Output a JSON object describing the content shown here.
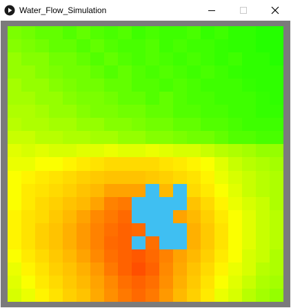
{
  "window": {
    "title": "Water_Flow_Simulation",
    "app_icon": "play-circle-icon",
    "controls": [
      "minimize-icon",
      "maximize-icon",
      "close-icon"
    ]
  },
  "colors": {
    "frame_border": "#7b7b7b",
    "water": "#3fbff2",
    "heat_low": "#10ff00",
    "heat_high": "#ff4a00"
  },
  "simulation": {
    "rows": 21,
    "cols": 20,
    "water_cells": [
      [
        12,
        10
      ],
      [
        12,
        12
      ],
      [
        13,
        9
      ],
      [
        13,
        10
      ],
      [
        13,
        11
      ],
      [
        13,
        12
      ],
      [
        14,
        9
      ],
      [
        14,
        10
      ],
      [
        14,
        11
      ],
      [
        15,
        10
      ],
      [
        15,
        11
      ],
      [
        15,
        12
      ],
      [
        16,
        9
      ],
      [
        16,
        11
      ],
      [
        16,
        12
      ]
    ],
    "elevation": [
      [
        0.2,
        0.18,
        0.15,
        0.15,
        0.12,
        0.15,
        0.12,
        0.1,
        0.12,
        0.08,
        0.1,
        0.08,
        0.08,
        0.1,
        0.06,
        0.08,
        0.05,
        0.05,
        0.03,
        0.03
      ],
      [
        0.22,
        0.2,
        0.18,
        0.15,
        0.15,
        0.12,
        0.15,
        0.12,
        0.1,
        0.1,
        0.12,
        0.08,
        0.1,
        0.08,
        0.08,
        0.06,
        0.05,
        0.05,
        0.03,
        0.03
      ],
      [
        0.25,
        0.22,
        0.22,
        0.18,
        0.18,
        0.15,
        0.12,
        0.15,
        0.12,
        0.1,
        0.12,
        0.1,
        0.08,
        0.1,
        0.08,
        0.06,
        0.08,
        0.05,
        0.05,
        0.03
      ],
      [
        0.25,
        0.25,
        0.22,
        0.2,
        0.18,
        0.18,
        0.15,
        0.12,
        0.15,
        0.12,
        0.1,
        0.12,
        0.1,
        0.08,
        0.1,
        0.08,
        0.06,
        0.05,
        0.05,
        0.05
      ],
      [
        0.28,
        0.25,
        0.25,
        0.22,
        0.2,
        0.18,
        0.18,
        0.15,
        0.15,
        0.12,
        0.12,
        0.1,
        0.12,
        0.1,
        0.08,
        0.08,
        0.08,
        0.06,
        0.05,
        0.05
      ],
      [
        0.28,
        0.28,
        0.25,
        0.25,
        0.22,
        0.2,
        0.2,
        0.18,
        0.15,
        0.15,
        0.12,
        0.15,
        0.12,
        0.1,
        0.1,
        0.08,
        0.08,
        0.08,
        0.06,
        0.05
      ],
      [
        0.3,
        0.3,
        0.28,
        0.25,
        0.25,
        0.22,
        0.2,
        0.2,
        0.18,
        0.18,
        0.15,
        0.15,
        0.12,
        0.12,
        0.1,
        0.1,
        0.08,
        0.08,
        0.06,
        0.06
      ],
      [
        0.32,
        0.3,
        0.3,
        0.28,
        0.28,
        0.25,
        0.25,
        0.22,
        0.22,
        0.2,
        0.18,
        0.18,
        0.15,
        0.15,
        0.12,
        0.12,
        0.1,
        0.08,
        0.08,
        0.08
      ],
      [
        0.35,
        0.35,
        0.32,
        0.32,
        0.3,
        0.3,
        0.28,
        0.28,
        0.25,
        0.25,
        0.22,
        0.22,
        0.2,
        0.18,
        0.18,
        0.15,
        0.12,
        0.12,
        0.1,
        0.1
      ],
      [
        0.4,
        0.38,
        0.4,
        0.38,
        0.38,
        0.4,
        0.4,
        0.42,
        0.4,
        0.4,
        0.42,
        0.4,
        0.38,
        0.38,
        0.35,
        0.32,
        0.3,
        0.28,
        0.25,
        0.25
      ],
      [
        0.42,
        0.42,
        0.45,
        0.45,
        0.48,
        0.5,
        0.52,
        0.55,
        0.55,
        0.55,
        0.55,
        0.52,
        0.5,
        0.48,
        0.45,
        0.4,
        0.35,
        0.32,
        0.3,
        0.28
      ],
      [
        0.45,
        0.48,
        0.5,
        0.52,
        0.55,
        0.58,
        0.6,
        0.62,
        0.62,
        0.62,
        0.6,
        0.58,
        0.55,
        0.52,
        0.48,
        0.42,
        0.38,
        0.35,
        0.32,
        0.3
      ],
      [
        0.45,
        0.5,
        0.52,
        0.55,
        0.58,
        0.62,
        0.65,
        0.72,
        0.72,
        0.72,
        0.7,
        0.65,
        0.6,
        0.55,
        0.5,
        0.45,
        0.4,
        0.35,
        0.32,
        0.3
      ],
      [
        0.45,
        0.5,
        0.55,
        0.58,
        0.62,
        0.65,
        0.72,
        0.82,
        0.85,
        0.85,
        0.8,
        0.75,
        0.68,
        0.62,
        0.55,
        0.48,
        0.42,
        0.38,
        0.35,
        0.3
      ],
      [
        0.48,
        0.52,
        0.55,
        0.6,
        0.65,
        0.72,
        0.8,
        0.85,
        0.9,
        0.88,
        0.85,
        0.8,
        0.72,
        0.65,
        0.58,
        0.5,
        0.45,
        0.4,
        0.35,
        0.32
      ],
      [
        0.48,
        0.52,
        0.58,
        0.62,
        0.68,
        0.75,
        0.82,
        0.88,
        0.92,
        0.9,
        0.88,
        0.82,
        0.75,
        0.68,
        0.6,
        0.52,
        0.45,
        0.4,
        0.35,
        0.32
      ],
      [
        0.48,
        0.52,
        0.58,
        0.62,
        0.68,
        0.75,
        0.82,
        0.9,
        0.92,
        0.92,
        0.88,
        0.82,
        0.75,
        0.68,
        0.6,
        0.52,
        0.45,
        0.4,
        0.35,
        0.32
      ],
      [
        0.45,
        0.5,
        0.55,
        0.6,
        0.65,
        0.72,
        0.8,
        0.88,
        0.92,
        0.95,
        0.9,
        0.82,
        0.72,
        0.65,
        0.58,
        0.5,
        0.45,
        0.38,
        0.35,
        0.3
      ],
      [
        0.42,
        0.48,
        0.52,
        0.58,
        0.62,
        0.68,
        0.75,
        0.85,
        0.92,
        0.98,
        0.92,
        0.8,
        0.7,
        0.62,
        0.55,
        0.48,
        0.42,
        0.38,
        0.32,
        0.3
      ],
      [
        0.4,
        0.45,
        0.5,
        0.55,
        0.6,
        0.65,
        0.72,
        0.8,
        0.88,
        0.92,
        0.88,
        0.78,
        0.68,
        0.6,
        0.52,
        0.45,
        0.4,
        0.35,
        0.3,
        0.28
      ],
      [
        0.38,
        0.42,
        0.48,
        0.52,
        0.58,
        0.62,
        0.7,
        0.78,
        0.85,
        0.9,
        0.85,
        0.75,
        0.65,
        0.58,
        0.5,
        0.42,
        0.38,
        0.32,
        0.28,
        0.25
      ]
    ]
  }
}
